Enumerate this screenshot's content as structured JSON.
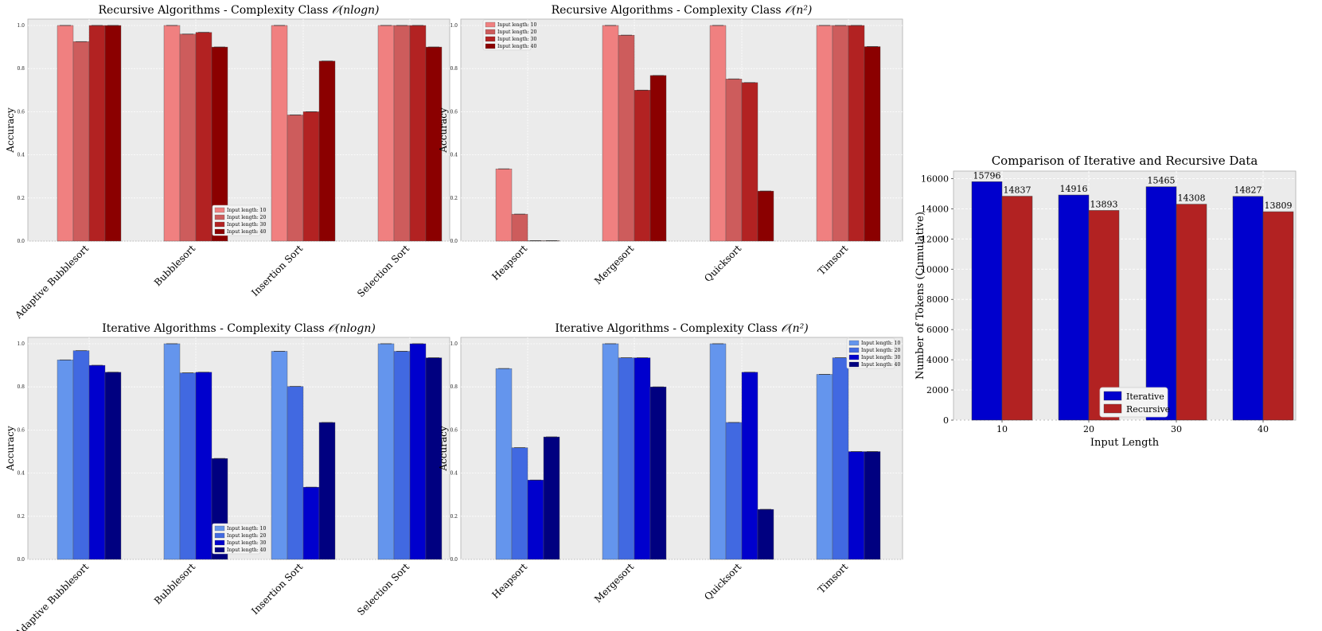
{
  "chart_data": [
    {
      "id": "rec_nlogn",
      "type": "bar",
      "title": "Recursive Algorithms - Complexity Class O(nlogn)",
      "title_main": "Recursive Algorithms - Complexity Class ",
      "title_math": "𝒪(nlogn)",
      "xlabel": "",
      "ylabel": "Accuracy",
      "ylim": [
        0,
        1.0
      ],
      "yticks": [
        "0.0",
        "0.2",
        "0.4",
        "0.6",
        "0.8",
        "1.0"
      ],
      "categories": [
        "Adaptive Bubblesort",
        "Bubblesort",
        "Insertion Sort",
        "Selection Sort"
      ],
      "series": [
        {
          "name": "Input length: 10",
          "color": "#f08080",
          "values": [
            1.0,
            1.0,
            1.0,
            1.0
          ]
        },
        {
          "name": "Input length: 20",
          "color": "#cd5c5c",
          "values": [
            0.925,
            0.96,
            0.585,
            1.0
          ]
        },
        {
          "name": "Input length: 30",
          "color": "#b22222",
          "values": [
            1.0,
            0.968,
            0.6,
            1.0
          ]
        },
        {
          "name": "Input length: 40",
          "color": "#8b0000",
          "values": [
            1.0,
            0.9,
            0.835,
            0.9
          ]
        }
      ],
      "legend_position": "lower-center"
    },
    {
      "id": "rec_n2",
      "type": "bar",
      "title": "Recursive Algorithms - Complexity Class O(n^2)",
      "title_main": "Recursive Algorithms - Complexity Class ",
      "title_math": "𝒪(n²)",
      "xlabel": "",
      "ylabel": "Accuracy",
      "ylim": [
        0,
        1.0
      ],
      "yticks": [
        "0.0",
        "0.2",
        "0.4",
        "0.6",
        "0.8",
        "1.0"
      ],
      "categories": [
        "Heapsort",
        "Mergesort",
        "Quicksort",
        "Timsort"
      ],
      "series": [
        {
          "name": "Input length: 10",
          "color": "#f08080",
          "values": [
            0.335,
            1.0,
            1.0,
            1.0
          ]
        },
        {
          "name": "Input length: 20",
          "color": "#cd5c5c",
          "values": [
            0.125,
            0.955,
            0.752,
            1.0
          ]
        },
        {
          "name": "Input length: 30",
          "color": "#b22222",
          "values": [
            0.0,
            0.7,
            0.735,
            1.0
          ]
        },
        {
          "name": "Input length: 40",
          "color": "#8b0000",
          "values": [
            0.0,
            0.768,
            0.232,
            0.902
          ]
        }
      ],
      "legend_position": "upper-left"
    },
    {
      "id": "it_nlogn",
      "type": "bar",
      "title": "Iterative Algorithms - Complexity Class O(nlogn)",
      "title_main": "Iterative Algorithms - Complexity Class ",
      "title_math": "𝒪(nlogn)",
      "xlabel": "",
      "ylabel": "Accuracy",
      "ylim": [
        0,
        1.0
      ],
      "yticks": [
        "0.0",
        "0.2",
        "0.4",
        "0.6",
        "0.8",
        "1.0"
      ],
      "categories": [
        "Adaptive Bubblesort",
        "Bubblesort",
        "Insertion Sort",
        "Selection Sort"
      ],
      "series": [
        {
          "name": "Input length: 10",
          "color": "#6495ed",
          "values": [
            0.925,
            1.0,
            0.965,
            1.0
          ]
        },
        {
          "name": "Input length: 20",
          "color": "#4169e1",
          "values": [
            0.968,
            0.865,
            0.802,
            0.965
          ]
        },
        {
          "name": "Input length: 30",
          "color": "#0000cd",
          "values": [
            0.9,
            0.868,
            0.335,
            1.0
          ]
        },
        {
          "name": "Input length: 40",
          "color": "#000080",
          "values": [
            0.868,
            0.468,
            0.635,
            0.935
          ]
        }
      ],
      "legend_position": "lower-center"
    },
    {
      "id": "it_n2",
      "type": "bar",
      "title": "Iterative Algorithms - Complexity Class O(n^2)",
      "title_main": "Iterative Algorithms - Complexity Class ",
      "title_math": "𝒪(n²)",
      "xlabel": "",
      "ylabel": "Accuracy",
      "ylim": [
        0,
        1.0
      ],
      "yticks": [
        "0.0",
        "0.2",
        "0.4",
        "0.6",
        "0.8",
        "1.0"
      ],
      "categories": [
        "Heapsort",
        "Mergesort",
        "Quicksort",
        "Timsort"
      ],
      "series": [
        {
          "name": "Input length: 10",
          "color": "#6495ed",
          "values": [
            0.885,
            1.0,
            1.0,
            0.858
          ]
        },
        {
          "name": "Input length: 20",
          "color": "#4169e1",
          "values": [
            0.518,
            0.935,
            0.635,
            0.935
          ]
        },
        {
          "name": "Input length: 30",
          "color": "#0000cd",
          "values": [
            0.368,
            0.935,
            0.868,
            0.5
          ]
        },
        {
          "name": "Input length: 40",
          "color": "#000080",
          "values": [
            0.568,
            0.8,
            0.232,
            0.5
          ]
        }
      ],
      "legend_position": "upper-right"
    },
    {
      "id": "tokens",
      "type": "bar",
      "title": "Comparison of Iterative and Recursive Data",
      "xlabel": "Input Length",
      "ylabel": "Number of Tokens (Cumulative)",
      "ylim": [
        0,
        16500
      ],
      "yticks": [
        "0",
        "2000",
        "4000",
        "6000",
        "8000",
        "10000",
        "12000",
        "14000",
        "16000"
      ],
      "categories": [
        "10",
        "20",
        "30",
        "40"
      ],
      "series": [
        {
          "name": "Iterative",
          "color": "#0000cd",
          "values": [
            15796,
            14916,
            15465,
            14827
          ]
        },
        {
          "name": "Recursive",
          "color": "#b22222",
          "values": [
            14837,
            13893,
            14308,
            13809
          ]
        }
      ],
      "show_data_labels": true,
      "legend_position": "lower-center"
    }
  ]
}
